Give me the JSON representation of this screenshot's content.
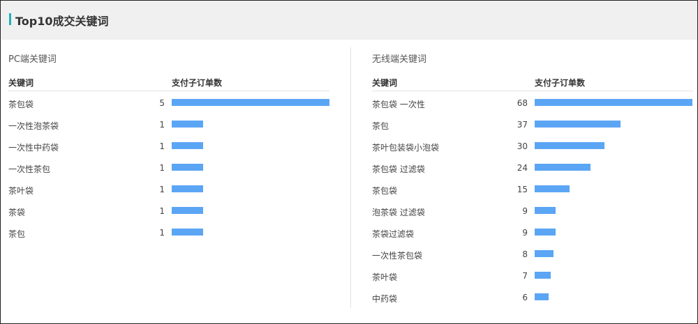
{
  "header": {
    "title": "Top10成交关键词"
  },
  "colors": {
    "accent": "#1fb1b8",
    "bar": "#5ba5f5"
  },
  "pc": {
    "title": "PC端关键词",
    "col_keyword": "关键词",
    "col_orders": "支付子订单数",
    "rows": [
      {
        "keyword": "茶包袋",
        "orders": "5"
      },
      {
        "keyword": "一次性泡茶袋",
        "orders": "1"
      },
      {
        "keyword": "一次性中药袋",
        "orders": "1"
      },
      {
        "keyword": "一次性茶包",
        "orders": "1"
      },
      {
        "keyword": "茶叶袋",
        "orders": "1"
      },
      {
        "keyword": "茶袋",
        "orders": "1"
      },
      {
        "keyword": "茶包",
        "orders": "1"
      }
    ]
  },
  "mobile": {
    "title": "无线端关键词",
    "col_keyword": "关键词",
    "col_orders": "支付子订单数",
    "rows": [
      {
        "keyword": "茶包袋 一次性",
        "orders": "68"
      },
      {
        "keyword": "茶包",
        "orders": "37"
      },
      {
        "keyword": "茶叶包装袋小泡袋",
        "orders": "30"
      },
      {
        "keyword": "茶包袋 过滤袋",
        "orders": "24"
      },
      {
        "keyword": "茶包袋",
        "orders": "15"
      },
      {
        "keyword": "泡茶袋 过滤袋",
        "orders": "9"
      },
      {
        "keyword": "茶袋过滤袋",
        "orders": "9"
      },
      {
        "keyword": "一次性茶包袋",
        "orders": "8"
      },
      {
        "keyword": "茶叶袋",
        "orders": "7"
      },
      {
        "keyword": "中药袋",
        "orders": "6"
      }
    ]
  }
}
